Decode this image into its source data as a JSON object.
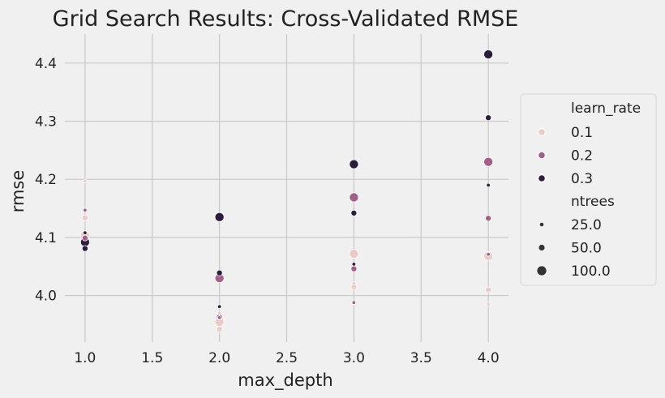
{
  "chart_data": {
    "type": "scatter",
    "title": "Grid Search Results: Cross-Validated RMSE",
    "xlabel": "max_depth",
    "ylabel": "rmse",
    "xlim": [
      0.85,
      4.15
    ],
    "ylim": [
      3.92,
      4.45
    ],
    "xticks": [
      1.0,
      1.5,
      2.0,
      2.5,
      3.0,
      3.5,
      4.0
    ],
    "xtick_labels": [
      "1.0",
      "1.5",
      "2.0",
      "2.5",
      "3.0",
      "3.5",
      "4.0"
    ],
    "yticks": [
      4.0,
      4.1,
      4.2,
      4.3,
      4.4
    ],
    "ytick_labels": [
      "4.0",
      "4.1",
      "4.2",
      "4.3",
      "4.4"
    ],
    "grid": true,
    "legend": {
      "placement": "right",
      "hue_title": "learn_rate",
      "hue_entries": [
        {
          "label": "0.1",
          "color": "#ebcbc6"
        },
        {
          "label": "0.2",
          "color": "#a35f87"
        },
        {
          "label": "0.3",
          "color": "#2c1d3e"
        }
      ],
      "size_title": "ntrees",
      "size_entries": [
        {
          "label": "25.0",
          "ntrees": 25
        },
        {
          "label": "50.0",
          "ntrees": 50
        },
        {
          "label": "100.0",
          "ntrees": 100
        }
      ]
    },
    "points": [
      {
        "max_depth": 1,
        "learn_rate": 0.1,
        "ntrees": 25,
        "rmse": 4.197
      },
      {
        "max_depth": 1,
        "learn_rate": 0.1,
        "ntrees": 50,
        "rmse": 4.134
      },
      {
        "max_depth": 1,
        "learn_rate": 0.1,
        "ntrees": 100,
        "rmse": 4.104
      },
      {
        "max_depth": 1,
        "learn_rate": 0.2,
        "ntrees": 25,
        "rmse": 4.147
      },
      {
        "max_depth": 1,
        "learn_rate": 0.2,
        "ntrees": 50,
        "rmse": 4.099
      },
      {
        "max_depth": 1,
        "learn_rate": 0.2,
        "ntrees": 100,
        "rmse": 4.094
      },
      {
        "max_depth": 1,
        "learn_rate": 0.3,
        "ntrees": 25,
        "rmse": 4.108
      },
      {
        "max_depth": 1,
        "learn_rate": 0.3,
        "ntrees": 50,
        "rmse": 4.081
      },
      {
        "max_depth": 1,
        "learn_rate": 0.3,
        "ntrees": 100,
        "rmse": 4.092
      },
      {
        "max_depth": 2,
        "learn_rate": 0.1,
        "ntrees": 25,
        "rmse": 3.97
      },
      {
        "max_depth": 2,
        "learn_rate": 0.1,
        "ntrees": 50,
        "rmse": 3.942
      },
      {
        "max_depth": 2,
        "learn_rate": 0.1,
        "ntrees": 100,
        "rmse": 3.955
      },
      {
        "max_depth": 2,
        "learn_rate": 0.2,
        "ntrees": 25,
        "rmse": 3.962
      },
      {
        "max_depth": 2,
        "learn_rate": 0.2,
        "ntrees": 50,
        "rmse": 3.963
      },
      {
        "max_depth": 2,
        "learn_rate": 0.2,
        "ntrees": 100,
        "rmse": 4.03
      },
      {
        "max_depth": 2,
        "learn_rate": 0.3,
        "ntrees": 25,
        "rmse": 3.981
      },
      {
        "max_depth": 2,
        "learn_rate": 0.3,
        "ntrees": 50,
        "rmse": 4.039
      },
      {
        "max_depth": 2,
        "learn_rate": 0.3,
        "ntrees": 100,
        "rmse": 4.135
      },
      {
        "max_depth": 3,
        "learn_rate": 0.1,
        "ntrees": 25,
        "rmse": 4.021
      },
      {
        "max_depth": 3,
        "learn_rate": 0.1,
        "ntrees": 50,
        "rmse": 4.015
      },
      {
        "max_depth": 3,
        "learn_rate": 0.1,
        "ntrees": 100,
        "rmse": 4.072
      },
      {
        "max_depth": 3,
        "learn_rate": 0.2,
        "ntrees": 25,
        "rmse": 3.988
      },
      {
        "max_depth": 3,
        "learn_rate": 0.2,
        "ntrees": 50,
        "rmse": 4.046
      },
      {
        "max_depth": 3,
        "learn_rate": 0.2,
        "ntrees": 100,
        "rmse": 4.169
      },
      {
        "max_depth": 3,
        "learn_rate": 0.3,
        "ntrees": 25,
        "rmse": 4.054
      },
      {
        "max_depth": 3,
        "learn_rate": 0.3,
        "ntrees": 50,
        "rmse": 4.142
      },
      {
        "max_depth": 3,
        "learn_rate": 0.3,
        "ntrees": 100,
        "rmse": 4.226
      },
      {
        "max_depth": 4,
        "learn_rate": 0.1,
        "ntrees": 25,
        "rmse": 3.985
      },
      {
        "max_depth": 4,
        "learn_rate": 0.1,
        "ntrees": 50,
        "rmse": 4.01
      },
      {
        "max_depth": 4,
        "learn_rate": 0.1,
        "ntrees": 100,
        "rmse": 4.068
      },
      {
        "max_depth": 4,
        "learn_rate": 0.2,
        "ntrees": 25,
        "rmse": 4.071
      },
      {
        "max_depth": 4,
        "learn_rate": 0.2,
        "ntrees": 50,
        "rmse": 4.133
      },
      {
        "max_depth": 4,
        "learn_rate": 0.2,
        "ntrees": 100,
        "rmse": 4.23
      },
      {
        "max_depth": 4,
        "learn_rate": 0.3,
        "ntrees": 25,
        "rmse": 4.19
      },
      {
        "max_depth": 4,
        "learn_rate": 0.3,
        "ntrees": 50,
        "rmse": 4.306
      },
      {
        "max_depth": 4,
        "learn_rate": 0.3,
        "ntrees": 100,
        "rmse": 4.415
      }
    ]
  }
}
